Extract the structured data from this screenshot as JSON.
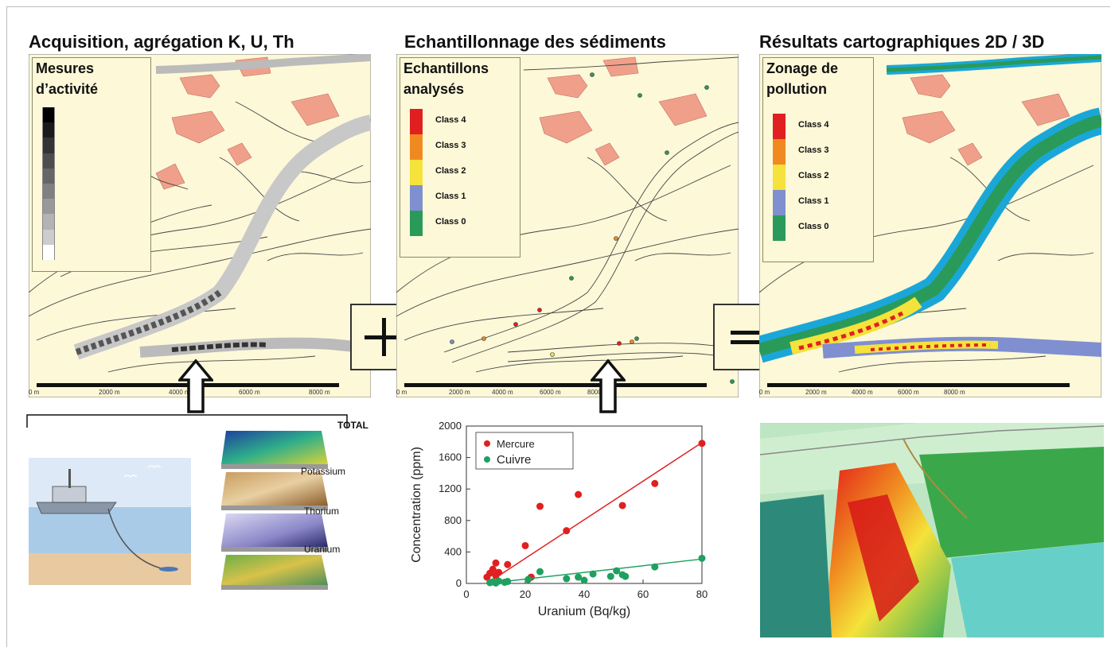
{
  "headings": {
    "acquisition": "Acquisition, agrégation K, U, Th",
    "sampling": "Echantillonnage des sédiments",
    "results": "Résultats cartographiques 2D / 3D"
  },
  "map1": {
    "legend_title_line1": "Mesures",
    "legend_title_line2": "d’activité",
    "gray_ramp": [
      "#000000",
      "#1a1a1a",
      "#333333",
      "#4d4d4d",
      "#666666",
      "#808080",
      "#999999",
      "#b3b3b3",
      "#cccccc",
      "#ffffff"
    ],
    "scale": [
      "0 m",
      "2000 m",
      "4000 m",
      "6000 m",
      "8000 m"
    ]
  },
  "map2": {
    "legend_title_line1": "Echantillons",
    "legend_title_line2": "analysés",
    "classes": [
      {
        "label": "Class 4",
        "color": "#e02020"
      },
      {
        "label": "Class 3",
        "color": "#f08a20"
      },
      {
        "label": "Class 2",
        "color": "#f5e23a"
      },
      {
        "label": "Class 1",
        "color": "#7f8fd0"
      },
      {
        "label": "Class 0",
        "color": "#2a9a5a"
      }
    ],
    "scale": [
      "0 m",
      "2000 m",
      "4000 m",
      "6000 m",
      "8000 m"
    ]
  },
  "map3": {
    "legend_title_line1": "Zonage de",
    "legend_title_line2": "pollution",
    "classes": [
      {
        "label": "Class 4",
        "color": "#e02020"
      },
      {
        "label": "Class 3",
        "color": "#f08a20"
      },
      {
        "label": "Class 2",
        "color": "#f5e23a"
      },
      {
        "label": "Class 1",
        "color": "#7f8fd0"
      },
      {
        "label": "Class 0",
        "color": "#2a9a5a"
      }
    ],
    "scale": [
      "0 m",
      "2000 m",
      "4000 m",
      "6000 m",
      "8000 m"
    ]
  },
  "operators": {
    "plus": "+",
    "equals": "="
  },
  "layers": {
    "total": "TOTAL",
    "potassium": "Potassium",
    "thorium": "Thorium",
    "uranium": "Uranium"
  },
  "colors": {
    "map_bg": "#fdf8d8",
    "urban": "#f0a08a",
    "river_blue": "#1aa7d8",
    "river_green": "#2a9a5a"
  },
  "chart_data": {
    "type": "scatter",
    "xlabel": "Uranium (Bq/kg)",
    "ylabel": "Concentration (ppm)",
    "xlim": [
      0,
      80
    ],
    "ylim": [
      0,
      2000
    ],
    "xticks": [
      0,
      20,
      40,
      60,
      80
    ],
    "yticks": [
      0,
      400,
      800,
      1200,
      1600,
      2000
    ],
    "legend_position": "top-left",
    "series": [
      {
        "name": "Mercure",
        "color": "#e02020",
        "x": [
          7,
          8,
          9,
          10,
          10,
          11,
          14,
          20,
          22,
          25,
          34,
          38,
          53,
          64,
          80
        ],
        "y": [
          80,
          130,
          180,
          260,
          100,
          140,
          240,
          480,
          80,
          980,
          670,
          1130,
          990,
          1270,
          1780
        ],
        "fit": [
          [
            7,
            0
          ],
          [
            80,
            1790
          ]
        ]
      },
      {
        "name": "Cuivre",
        "color": "#20a060",
        "x": [
          8,
          9,
          10,
          11,
          13,
          14,
          21,
          25,
          34,
          38,
          40,
          43,
          49,
          51,
          53,
          54,
          64,
          80
        ],
        "y": [
          10,
          20,
          5,
          30,
          15,
          25,
          50,
          150,
          60,
          80,
          40,
          120,
          90,
          160,
          110,
          90,
          210,
          320
        ],
        "fit": [
          [
            7,
            0
          ],
          [
            80,
            310
          ]
        ]
      }
    ]
  }
}
